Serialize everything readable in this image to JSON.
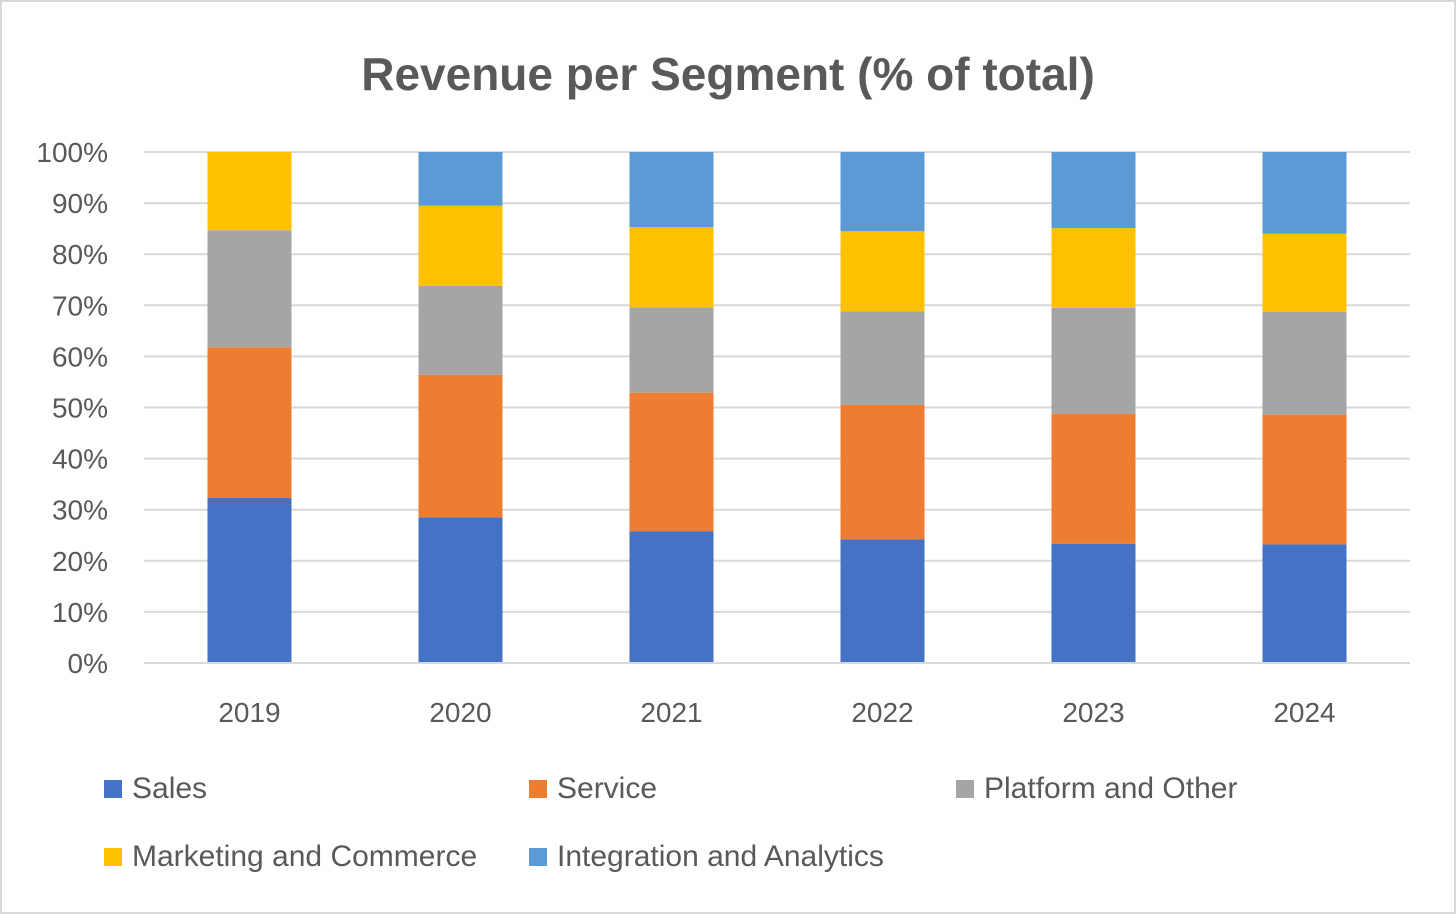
{
  "chart_data": {
    "type": "bar",
    "stacked": true,
    "title": "Revenue per Segment (% of total)",
    "xlabel": "",
    "ylabel": "",
    "ylim": [
      0,
      100
    ],
    "y_ticks": [
      "0%",
      "10%",
      "20%",
      "30%",
      "40%",
      "50%",
      "60%",
      "70%",
      "80%",
      "90%",
      "100%"
    ],
    "grid": true,
    "legend_position": "bottom",
    "categories": [
      "2019",
      "2020",
      "2021",
      "2022",
      "2023",
      "2024"
    ],
    "series": [
      {
        "name": "Sales",
        "color": "#4472C4",
        "values": [
          32.3,
          28.5,
          25.8,
          24.2,
          23.3,
          23.2
        ]
      },
      {
        "name": "Service",
        "color": "#ED7D31",
        "values": [
          29.5,
          27.9,
          27.1,
          26.3,
          25.5,
          25.4
        ]
      },
      {
        "name": "Platform and Other",
        "color": "#A5A5A5",
        "values": [
          22.9,
          17.4,
          16.7,
          18.3,
          20.7,
          20.1
        ]
      },
      {
        "name": "Marketing and Commerce",
        "color": "#FFC000",
        "values": [
          15.3,
          15.7,
          15.7,
          15.7,
          15.6,
          15.3
        ]
      },
      {
        "name": "Integration and Analytics",
        "color": "#5B9BD5",
        "values": [
          0,
          10.5,
          14.7,
          15.5,
          14.9,
          16.0
        ]
      }
    ]
  }
}
